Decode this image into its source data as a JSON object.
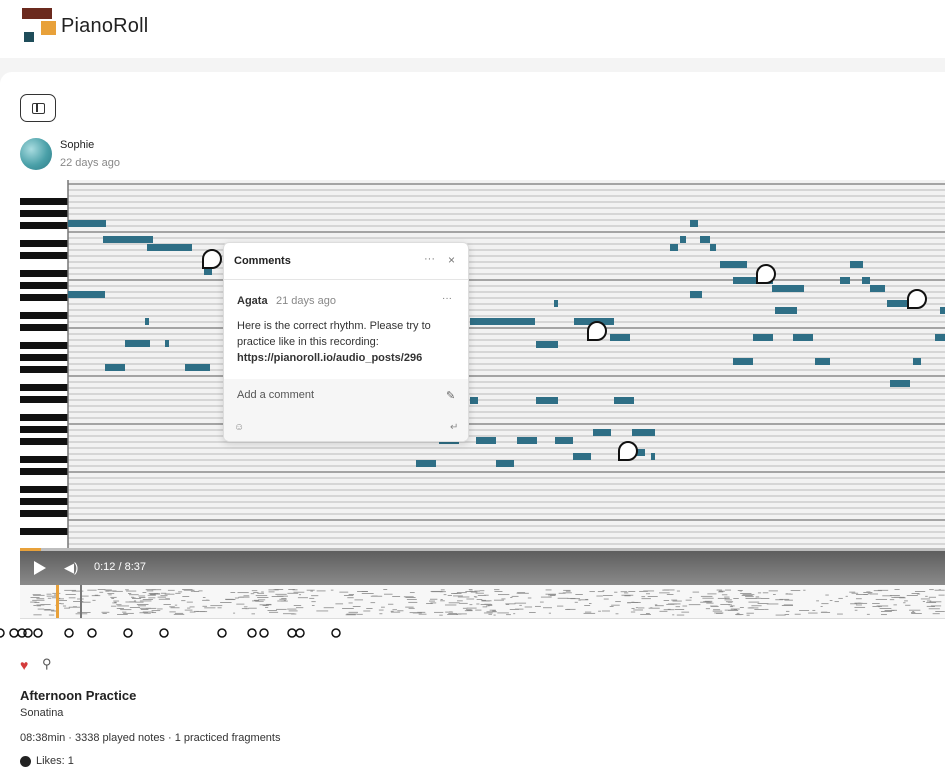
{
  "app": {
    "name": "PianoRoll"
  },
  "post": {
    "author": "Sophie",
    "posted": "22 days ago",
    "title": "Afternoon Practice",
    "piece": "Sonatina",
    "stats": "08:38min · 3338 played notes · 1 practiced fragments",
    "likes": "Likes: 1"
  },
  "player": {
    "time": "0:12 / 8:37",
    "progress_fraction": 0.023
  },
  "comments": {
    "title": "Comments",
    "more": "···",
    "close": "×",
    "items": [
      {
        "author": "Agata",
        "date": "21 days ago",
        "text": "Here is the correct rhythm. Please try to practice like in this recording:",
        "link": "https://pianoroll.io/audio_posts/296"
      }
    ],
    "placeholder": "Add a comment"
  },
  "icons": [
    "sidebar-toggle-icon",
    "play-icon",
    "volume-icon",
    "heart-icon",
    "search-icon",
    "comment-bubble-icon",
    "emoji-icon",
    "enter-icon",
    "edit-icon"
  ],
  "colors": {
    "note": "#2f6f86",
    "accent": "#e8a13a",
    "brand_dark": "#6b2a1e",
    "like": "#d43a3a"
  }
}
